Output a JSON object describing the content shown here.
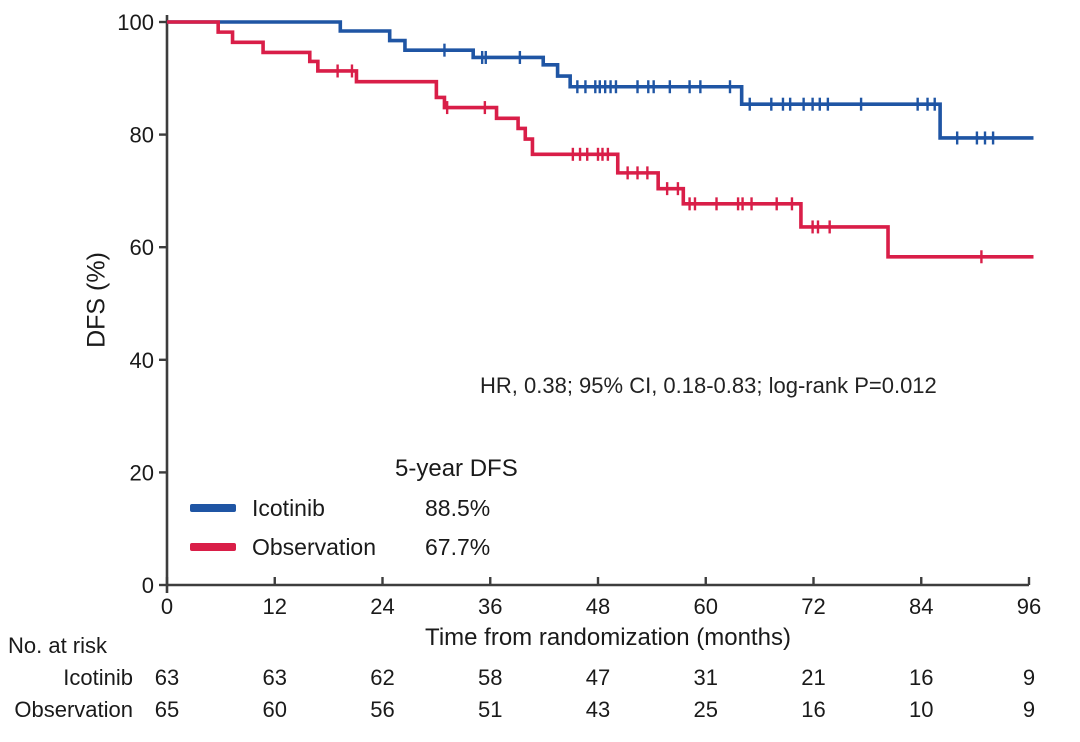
{
  "figure_title": "Kaplan-Meier disease-free survival plot",
  "colors": {
    "icotinib": "#1f55a4",
    "observation": "#d91e48",
    "axis": "#3d3d3d",
    "text": "#1a1a1a"
  },
  "chart_data": {
    "type": "line",
    "subtype": "kaplan-meier-step",
    "title": "",
    "xlabel": "Time from randomization (months)",
    "ylabel": "DFS (%)",
    "xlim": [
      0,
      96
    ],
    "ylim": [
      0,
      100
    ],
    "x_ticks": [
      0,
      12,
      24,
      36,
      48,
      60,
      72,
      84,
      96
    ],
    "y_ticks": [
      0,
      20,
      40,
      60,
      80,
      100
    ],
    "grid": false,
    "annotation": "HR, 0.38; 95% CI, 0.18-0.83; log-rank P=0.012",
    "legend": {
      "position": "inside-lower-left",
      "header": "5-year DFS",
      "entries": [
        {
          "name": "Icotinib",
          "value": "88.5%",
          "color": "#1f55a4"
        },
        {
          "name": "Observation",
          "value": "67.7%",
          "color": "#d91e48"
        }
      ]
    },
    "series": [
      {
        "name": "Icotinib",
        "color": "#1f55a4",
        "end": 96.5,
        "steps": [
          [
            0,
            100
          ],
          [
            19.3,
            98.4
          ],
          [
            24.8,
            96.7
          ],
          [
            26.5,
            95.0
          ],
          [
            34.1,
            93.7
          ],
          [
            41.9,
            92.4
          ],
          [
            43.5,
            90.4
          ],
          [
            44.9,
            88.5
          ],
          [
            64.0,
            85.4
          ],
          [
            86.1,
            79.4
          ]
        ],
        "censors": [
          30.9,
          35.1,
          35.5,
          39.3,
          45.7,
          46.6,
          47.7,
          48.2,
          48.8,
          49.4,
          50.0,
          52.4,
          53.6,
          54.2,
          56.0,
          58.2,
          59.4,
          62.7,
          64.9,
          67.3,
          68.6,
          69.4,
          70.9,
          71.9,
          72.7,
          73.6,
          77.3,
          83.6,
          84.7,
          85.5,
          88.0,
          90.2,
          91.1,
          92.0
        ]
      },
      {
        "name": "Observation",
        "color": "#d91e48",
        "end": 96.5,
        "steps": [
          [
            0,
            100
          ],
          [
            5.7,
            98.2
          ],
          [
            7.3,
            96.4
          ],
          [
            10.7,
            94.6
          ],
          [
            15.9,
            93.0
          ],
          [
            16.8,
            91.3
          ],
          [
            21.1,
            89.4
          ],
          [
            30.0,
            86.6
          ],
          [
            30.9,
            84.8
          ],
          [
            36.7,
            82.9
          ],
          [
            39.1,
            81.1
          ],
          [
            39.9,
            79.2
          ],
          [
            40.7,
            76.5
          ],
          [
            50.2,
            73.2
          ],
          [
            54.7,
            70.4
          ],
          [
            57.5,
            67.7
          ],
          [
            70.6,
            63.6
          ],
          [
            80.3,
            58.3
          ]
        ],
        "censors": [
          19.0,
          20.6,
          31.2,
          35.4,
          45.2,
          46.0,
          46.8,
          48.0,
          48.5,
          49.1,
          51.3,
          52.4,
          53.5,
          55.7,
          56.9,
          58.2,
          58.8,
          61.2,
          63.6,
          64.1,
          65.1,
          67.9,
          69.6,
          71.9,
          72.5,
          73.8,
          90.7
        ]
      }
    ],
    "risk_table": {
      "title": "No. at risk",
      "months": [
        0,
        12,
        24,
        36,
        48,
        60,
        72,
        84,
        96
      ],
      "rows": [
        {
          "label": "Icotinib",
          "values": [
            63,
            63,
            62,
            58,
            47,
            31,
            21,
            16,
            9
          ]
        },
        {
          "label": "Observation",
          "values": [
            65,
            60,
            56,
            51,
            43,
            25,
            16,
            10,
            9
          ]
        }
      ]
    }
  }
}
